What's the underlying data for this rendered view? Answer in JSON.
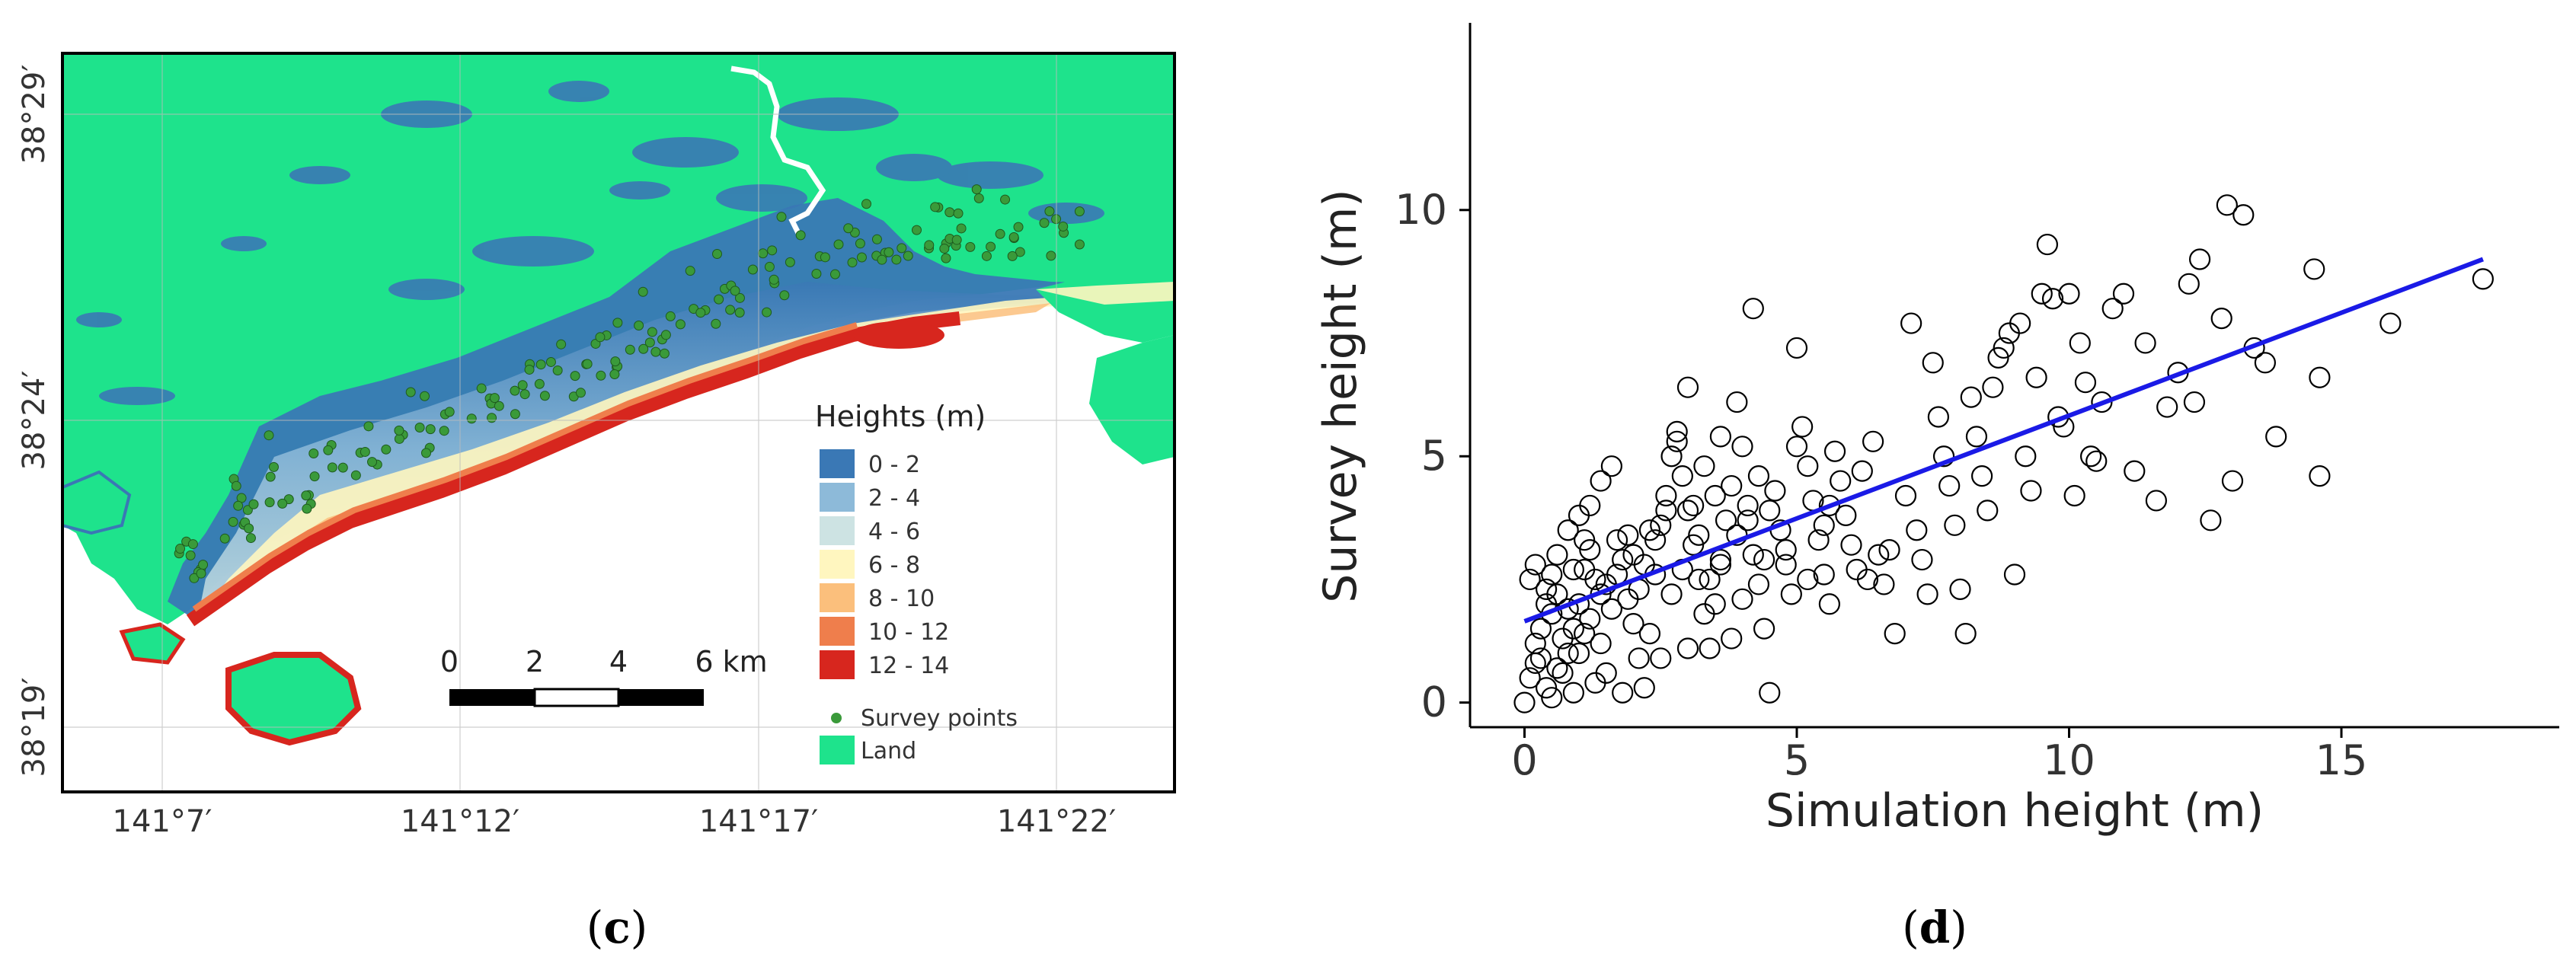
{
  "panel_c": {
    "label_open": "(",
    "label_letter": "c",
    "label_close": ")",
    "lat_ticks": [
      "38°29′",
      "38°24′",
      "38°19′"
    ],
    "lon_ticks": [
      "141°7′",
      "141°12′",
      "141°17′",
      "141°22′"
    ],
    "legend": {
      "title": "Heights (m)",
      "items": [
        {
          "label": "0 - 2",
          "color": "#3a78b5"
        },
        {
          "label": "2 - 4",
          "color": "#8dbad9"
        },
        {
          "label": "4 - 6",
          "color": "#cde3e3"
        },
        {
          "label": "6 - 8",
          "color": "#fff6bf"
        },
        {
          "label": "8 - 10",
          "color": "#fbbf7c"
        },
        {
          "label": "10 - 12",
          "color": "#ef7e4c"
        },
        {
          "label": "12 - 14",
          "color": "#d7261e"
        }
      ],
      "survey_label": "Survey points",
      "survey_color": "#3a9a3a",
      "land_label": "Land",
      "land_color": "#1ee38c"
    },
    "scalebar": {
      "ticks": [
        "0",
        "2",
        "4",
        "6 km"
      ]
    },
    "colors": {
      "sea": "#ffffff",
      "land": "#1ee38c",
      "frame": "#000000"
    }
  },
  "panel_d": {
    "label_open": "(",
    "label_letter": "d",
    "label_close": ")"
  },
  "chart_data": {
    "type": "scatter",
    "xlabel": "Simulation height (m)",
    "ylabel": "Survey height (m)",
    "xlim": [
      -1,
      19
    ],
    "ylim": [
      -0.5,
      13.8
    ],
    "xticks": [
      0,
      5,
      10,
      15
    ],
    "yticks": [
      0,
      5,
      10
    ],
    "xtick_labels": [
      "0",
      "5",
      "10",
      "15"
    ],
    "ytick_labels": [
      "0",
      "5",
      "10"
    ],
    "fit_line": {
      "color": "#1a1ae6",
      "x": [
        0,
        17.6
      ],
      "y": [
        1.65,
        9.0
      ]
    },
    "marker": "open-circle",
    "points": [
      [
        0.0,
        0.0
      ],
      [
        0.1,
        0.5
      ],
      [
        0.2,
        1.2
      ],
      [
        0.3,
        0.9
      ],
      [
        0.4,
        0.3
      ],
      [
        0.5,
        1.8
      ],
      [
        0.6,
        2.2
      ],
      [
        0.1,
        2.5
      ],
      [
        0.2,
        2.8
      ],
      [
        0.4,
        2.3
      ],
      [
        0.5,
        0.1
      ],
      [
        0.7,
        0.6
      ],
      [
        0.8,
        1.0
      ],
      [
        0.9,
        1.5
      ],
      [
        1.0,
        2.0
      ],
      [
        1.1,
        2.7
      ],
      [
        1.2,
        3.1
      ],
      [
        1.3,
        0.4
      ],
      [
        1.4,
        1.2
      ],
      [
        1.5,
        2.4
      ],
      [
        0.6,
        3.0
      ],
      [
        0.8,
        3.5
      ],
      [
        1.0,
        3.8
      ],
      [
        1.2,
        4.0
      ],
      [
        1.4,
        4.5
      ],
      [
        1.6,
        4.8
      ],
      [
        1.7,
        3.3
      ],
      [
        1.8,
        2.9
      ],
      [
        1.9,
        2.1
      ],
      [
        2.0,
        1.6
      ],
      [
        2.1,
        0.9
      ],
      [
        2.2,
        0.3
      ],
      [
        2.3,
        1.4
      ],
      [
        2.4,
        2.6
      ],
      [
        2.5,
        3.6
      ],
      [
        2.6,
        4.2
      ],
      [
        2.7,
        5.0
      ],
      [
        2.8,
        5.5
      ],
      [
        2.9,
        4.6
      ],
      [
        3.0,
        3.9
      ],
      [
        3.1,
        3.2
      ],
      [
        3.2,
        2.5
      ],
      [
        3.3,
        1.8
      ],
      [
        3.4,
        1.1
      ],
      [
        3.5,
        2.0
      ],
      [
        3.6,
        2.9
      ],
      [
        3.7,
        3.7
      ],
      [
        3.8,
        4.4
      ],
      [
        3.9,
        6.1
      ],
      [
        4.0,
        5.2
      ],
      [
        4.1,
        4.0
      ],
      [
        4.2,
        3.0
      ],
      [
        4.3,
        2.4
      ],
      [
        4.4,
        1.5
      ],
      [
        4.5,
        0.2
      ],
      [
        4.2,
        8.0
      ],
      [
        3.0,
        6.4
      ],
      [
        2.8,
        5.3
      ],
      [
        4.6,
        4.3
      ],
      [
        4.7,
        3.5
      ],
      [
        4.8,
        2.8
      ],
      [
        4.9,
        2.2
      ],
      [
        5.0,
        7.2
      ],
      [
        5.1,
        5.6
      ],
      [
        5.2,
        4.8
      ],
      [
        5.3,
        4.1
      ],
      [
        5.4,
        3.3
      ],
      [
        5.5,
        2.6
      ],
      [
        5.6,
        2.0
      ],
      [
        5.7,
        5.1
      ],
      [
        5.8,
        4.5
      ],
      [
        5.9,
        3.8
      ],
      [
        6.0,
        3.2
      ],
      [
        6.1,
        2.7
      ],
      [
        6.2,
        4.7
      ],
      [
        6.4,
        5.3
      ],
      [
        6.5,
        3.0
      ],
      [
        6.6,
        2.4
      ],
      [
        6.8,
        1.4
      ],
      [
        7.0,
        4.2
      ],
      [
        7.1,
        7.7
      ],
      [
        7.2,
        3.5
      ],
      [
        7.3,
        2.9
      ],
      [
        7.4,
        2.2
      ],
      [
        7.5,
        6.9
      ],
      [
        7.6,
        5.8
      ],
      [
        7.7,
        5.0
      ],
      [
        7.8,
        4.4
      ],
      [
        7.9,
        3.6
      ],
      [
        8.0,
        2.3
      ],
      [
        8.1,
        1.4
      ],
      [
        8.2,
        6.2
      ],
      [
        8.3,
        5.4
      ],
      [
        8.4,
        4.6
      ],
      [
        8.5,
        3.9
      ],
      [
        8.6,
        6.4
      ],
      [
        8.7,
        7.0
      ],
      [
        8.8,
        7.2
      ],
      [
        8.9,
        7.5
      ],
      [
        9.0,
        2.6
      ],
      [
        9.1,
        7.7
      ],
      [
        9.2,
        5.0
      ],
      [
        9.3,
        4.3
      ],
      [
        9.4,
        6.6
      ],
      [
        9.5,
        8.3
      ],
      [
        9.6,
        9.3
      ],
      [
        9.7,
        8.2
      ],
      [
        9.8,
        5.8
      ],
      [
        9.9,
        5.6
      ],
      [
        10.0,
        8.3
      ],
      [
        10.1,
        4.2
      ],
      [
        10.2,
        7.3
      ],
      [
        10.3,
        6.5
      ],
      [
        10.4,
        5.0
      ],
      [
        10.5,
        4.9
      ],
      [
        10.6,
        6.1
      ],
      [
        10.8,
        8.0
      ],
      [
        11.0,
        8.3
      ],
      [
        11.2,
        4.7
      ],
      [
        11.4,
        7.3
      ],
      [
        11.6,
        4.1
      ],
      [
        11.8,
        6.0
      ],
      [
        12.0,
        6.7
      ],
      [
        12.2,
        8.5
      ],
      [
        12.3,
        6.1
      ],
      [
        12.4,
        9.0
      ],
      [
        12.6,
        3.7
      ],
      [
        12.8,
        7.8
      ],
      [
        12.9,
        10.1
      ],
      [
        13.0,
        4.5
      ],
      [
        13.2,
        9.9
      ],
      [
        13.4,
        7.2
      ],
      [
        13.6,
        6.9
      ],
      [
        13.8,
        5.4
      ],
      [
        14.5,
        8.8
      ],
      [
        14.6,
        6.6
      ],
      [
        14.6,
        4.6
      ],
      [
        15.9,
        7.7
      ],
      [
        17.6,
        8.6
      ],
      [
        0.3,
        1.5
      ],
      [
        0.9,
        2.7
      ],
      [
        1.1,
        3.3
      ],
      [
        1.3,
        2.5
      ],
      [
        1.6,
        1.9
      ],
      [
        2.0,
        3.0
      ],
      [
        2.2,
        2.8
      ],
      [
        2.4,
        3.3
      ],
      [
        2.6,
        3.9
      ],
      [
        3.1,
        4.0
      ],
      [
        3.3,
        4.8
      ],
      [
        3.5,
        4.2
      ],
      [
        3.6,
        5.4
      ],
      [
        3.9,
        3.4
      ],
      [
        4.0,
        2.1
      ],
      [
        4.3,
        4.6
      ],
      [
        4.5,
        3.9
      ],
      [
        5.0,
        5.2
      ],
      [
        5.5,
        3.6
      ],
      [
        6.3,
        2.5
      ],
      [
        6.7,
        3.1
      ],
      [
        0.2,
        0.8
      ],
      [
        0.6,
        0.7
      ],
      [
        0.7,
        1.3
      ],
      [
        0.9,
        0.2
      ],
      [
        1.5,
        0.6
      ],
      [
        1.8,
        0.2
      ],
      [
        2.5,
        0.9
      ],
      [
        3.0,
        1.1
      ],
      [
        3.4,
        2.5
      ],
      [
        3.8,
        1.3
      ],
      [
        1.0,
        1.0
      ],
      [
        1.2,
        1.7
      ],
      [
        1.4,
        2.2
      ],
      [
        1.7,
        2.6
      ],
      [
        2.1,
        2.3
      ],
      [
        2.3,
        3.5
      ],
      [
        2.9,
        2.7
      ],
      [
        3.2,
        3.4
      ],
      [
        4.4,
        2.9
      ],
      [
        5.2,
        2.5
      ],
      [
        0.4,
        2.0
      ],
      [
        0.5,
        2.6
      ],
      [
        0.8,
        1.9
      ],
      [
        1.1,
        1.4
      ],
      [
        1.9,
        3.4
      ],
      [
        2.7,
        2.2
      ],
      [
        3.6,
        2.8
      ],
      [
        4.1,
        3.7
      ],
      [
        4.8,
        3.1
      ],
      [
        5.6,
        4.0
      ]
    ]
  }
}
